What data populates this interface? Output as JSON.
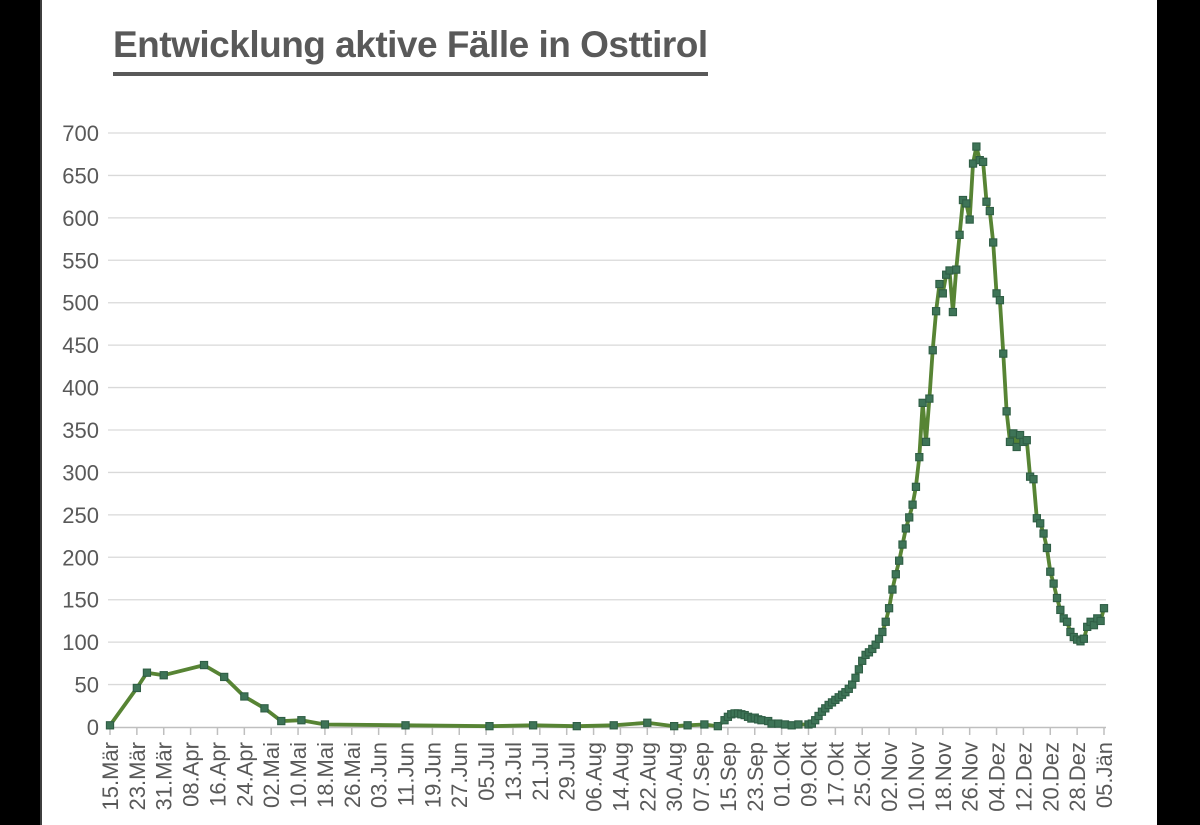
{
  "chart_data": {
    "type": "line",
    "title": "Entwicklung aktive Fälle in Osttirol",
    "xlabel": "",
    "ylabel": "",
    "ylim": [
      0,
      700
    ],
    "ytick_step": 50,
    "y_tick_labels": [
      "0",
      "50",
      "100",
      "150",
      "200",
      "250",
      "300",
      "350",
      "400",
      "450",
      "500",
      "550",
      "600",
      "650",
      "700"
    ],
    "x_tick_labels": [
      "15.Mär",
      "23.Mär",
      "31.Mär",
      "08.Apr",
      "16.Apr",
      "24.Apr",
      "02.Mai",
      "10.Mai",
      "18.Mai",
      "26.Mai",
      "03.Jun",
      "11.Jun",
      "19.Jun",
      "27.Jun",
      "05.Jul",
      "13.Jul",
      "21.Jul",
      "29.Jul",
      "06.Aug",
      "14.Aug",
      "22.Aug",
      "30.Aug",
      "07.Sep",
      "15.Sep",
      "23.Sep",
      "01.Okt",
      "09.Okt",
      "17.Okt",
      "25.Okt",
      "02.Nov",
      "10.Nov",
      "18.Nov",
      "26.Nov",
      "04.Dez",
      "12.Dez",
      "20.Dez",
      "28.Dez",
      "05.Jän"
    ],
    "x_tick_interval_days": 8,
    "x_axis_total_days": 296,
    "grid": true,
    "legend_position": "none",
    "marker_shape": "square",
    "colors": {
      "line": "#578434",
      "marker_fill": "#3e7457",
      "marker_stroke": "#2f5e45",
      "gridline": "#d9d9d9",
      "axis": "#bfbfbf",
      "label_text": "#595959",
      "title_text": "#595959",
      "plot_background": "#ffffff",
      "letterbox": "#000000"
    },
    "series": [
      {
        "points_day_value": [
          [
            0,
            2
          ],
          [
            8,
            46
          ],
          [
            11,
            64
          ],
          [
            16,
            61
          ],
          [
            28,
            73
          ],
          [
            34,
            59
          ],
          [
            40,
            36
          ],
          [
            46,
            22
          ],
          [
            51,
            7
          ],
          [
            57,
            8
          ],
          [
            64,
            3
          ],
          [
            88,
            2
          ],
          [
            113,
            1
          ],
          [
            126,
            2
          ],
          [
            139,
            1
          ],
          [
            150,
            2
          ],
          [
            160,
            5
          ],
          [
            168,
            1
          ],
          [
            172,
            2
          ],
          [
            177,
            3
          ],
          [
            181,
            1
          ],
          [
            183,
            8
          ],
          [
            184,
            12
          ],
          [
            185,
            15
          ],
          [
            186,
            16
          ],
          [
            187,
            16
          ],
          [
            188,
            15
          ],
          [
            189,
            14
          ],
          [
            190,
            12
          ],
          [
            191,
            10
          ],
          [
            192,
            11
          ],
          [
            193,
            9
          ],
          [
            194,
            8
          ],
          [
            196,
            7
          ],
          [
            197,
            4
          ],
          [
            199,
            4
          ],
          [
            201,
            3
          ],
          [
            203,
            2
          ],
          [
            205,
            3
          ],
          [
            208,
            3
          ],
          [
            209,
            4
          ],
          [
            210,
            8
          ],
          [
            211,
            13
          ],
          [
            212,
            18
          ],
          [
            213,
            22
          ],
          [
            214,
            26
          ],
          [
            215,
            29
          ],
          [
            216,
            32
          ],
          [
            217,
            35
          ],
          [
            218,
            38
          ],
          [
            219,
            41
          ],
          [
            220,
            45
          ],
          [
            221,
            50
          ],
          [
            222,
            58
          ],
          [
            223,
            68
          ],
          [
            224,
            78
          ],
          [
            225,
            85
          ],
          [
            226,
            88
          ],
          [
            227,
            92
          ],
          [
            228,
            97
          ],
          [
            229,
            104
          ],
          [
            230,
            112
          ],
          [
            231,
            124
          ],
          [
            232,
            140
          ],
          [
            233,
            162
          ],
          [
            234,
            180
          ],
          [
            235,
            196
          ],
          [
            236,
            215
          ],
          [
            237,
            234
          ],
          [
            238,
            247
          ],
          [
            239,
            262
          ],
          [
            240,
            283
          ],
          [
            241,
            318
          ],
          [
            242,
            382
          ],
          [
            243,
            336
          ],
          [
            244,
            387
          ],
          [
            245,
            444
          ],
          [
            246,
            490
          ],
          [
            247,
            522
          ],
          [
            248,
            511
          ],
          [
            249,
            533
          ],
          [
            250,
            538
          ],
          [
            251,
            489
          ],
          [
            252,
            539
          ],
          [
            253,
            580
          ],
          [
            254,
            621
          ],
          [
            255,
            617
          ],
          [
            256,
            598
          ],
          [
            257,
            664
          ],
          [
            258,
            684
          ],
          [
            259,
            668
          ],
          [
            260,
            666
          ],
          [
            261,
            619
          ],
          [
            262,
            608
          ],
          [
            263,
            571
          ],
          [
            264,
            511
          ],
          [
            265,
            503
          ],
          [
            266,
            440
          ],
          [
            267,
            372
          ],
          [
            268,
            336
          ],
          [
            269,
            346
          ],
          [
            270,
            330
          ],
          [
            271,
            344
          ],
          [
            272,
            336
          ],
          [
            273,
            338
          ],
          [
            274,
            295
          ],
          [
            275,
            292
          ],
          [
            276,
            246
          ],
          [
            277,
            240
          ],
          [
            278,
            228
          ],
          [
            279,
            211
          ],
          [
            280,
            183
          ],
          [
            281,
            169
          ],
          [
            282,
            152
          ],
          [
            283,
            138
          ],
          [
            284,
            128
          ],
          [
            285,
            124
          ],
          [
            286,
            112
          ],
          [
            287,
            106
          ],
          [
            288,
            103
          ],
          [
            289,
            101
          ],
          [
            290,
            104
          ],
          [
            291,
            118
          ],
          [
            292,
            124
          ],
          [
            293,
            120
          ],
          [
            294,
            128
          ],
          [
            295,
            125
          ],
          [
            296,
            140
          ]
        ]
      }
    ]
  }
}
